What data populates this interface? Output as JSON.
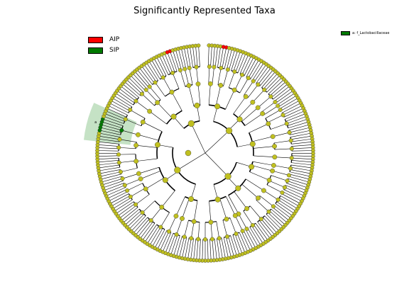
{
  "title": "Significantly Represented Taxa",
  "legend": [
    {
      "label": "AIP",
      "color": "#ff0000"
    },
    {
      "label": "SIP",
      "color": "#007a00"
    }
  ],
  "clade_legend": {
    "label": "a: f_Lactobacillaceae",
    "color": "#007a00"
  },
  "highlight": {
    "letter": "a",
    "color": "#7fbf7f"
  },
  "node_colors": {
    "default": "#c0c020",
    "aip": "#ff0000",
    "sip": "#007a00"
  }
}
